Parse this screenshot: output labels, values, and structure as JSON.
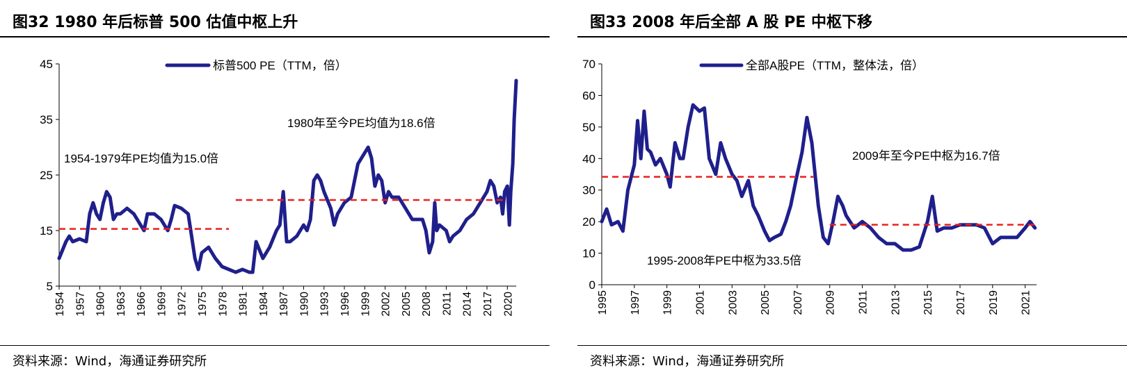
{
  "panels": [
    {
      "figure_title": "图32 1980 年后标普 500 估值中枢上升",
      "source": "资料来源：Wind，海通证券研究所"
    },
    {
      "figure_title": "图33 2008 年后全部 A 股 PE 中枢下移",
      "source": "资料来源：Wind，海通证券研究所"
    }
  ],
  "chart_data": [
    {
      "type": "line",
      "title": "",
      "xlabel": "",
      "ylabel": "",
      "x_ticks": [
        "1954",
        "1957",
        "1960",
        "1963",
        "1966",
        "1969",
        "1972",
        "1975",
        "1978",
        "1981",
        "1984",
        "1987",
        "1990",
        "1993",
        "1996",
        "1999",
        "2002",
        "2005",
        "2008",
        "2011",
        "2014",
        "2017",
        "2020"
      ],
      "y_ticks": [
        5,
        15,
        25,
        35,
        45
      ],
      "xlim": [
        1954,
        2021.3
      ],
      "ylim": [
        5,
        45
      ],
      "grid": false,
      "legend": "top-center",
      "series": [
        {
          "name": "标普500 PE（TTM，倍）",
          "color": "#1f1f8c",
          "x": [
            1954,
            1955,
            1955.5,
            1956,
            1957,
            1958,
            1958.5,
            1959,
            1959.5,
            1960,
            1960.5,
            1961,
            1961.5,
            1962,
            1962.5,
            1963,
            1964,
            1965,
            1966,
            1966.5,
            1967,
            1968,
            1969,
            1970,
            1970.5,
            1971,
            1972,
            1973,
            1973.5,
            1974,
            1974.5,
            1975,
            1976,
            1977,
            1978,
            1979,
            1980,
            1981,
            1982,
            1982.5,
            1983,
            1984,
            1984.5,
            1985,
            1986,
            1986.5,
            1987,
            1987.5,
            1988,
            1989,
            1990,
            1990.5,
            1991,
            1991.5,
            1992,
            1992.5,
            1993,
            1994,
            1994.5,
            1995,
            1996,
            1997,
            1998,
            1999,
            1999.5,
            2000,
            2000.5,
            2001,
            2001.5,
            2002,
            2002.5,
            2003,
            2004,
            2005,
            2006,
            2007,
            2007.5,
            2008,
            2008.5,
            2009,
            2009.3,
            2009.6,
            2010,
            2011,
            2011.5,
            2012,
            2013,
            2014,
            2015,
            2016,
            2017,
            2017.5,
            2018,
            2018.5,
            2019,
            2019.3,
            2019.6,
            2020,
            2020.3,
            2020.5,
            2020.8,
            2021,
            2021.3
          ],
          "y": [
            10,
            13,
            14,
            13,
            13.5,
            13,
            18,
            20,
            18,
            17,
            20,
            22,
            21,
            17,
            18,
            18,
            19,
            18,
            16,
            15,
            18,
            18,
            17,
            15,
            17,
            19.5,
            19,
            18,
            14,
            10,
            8,
            11,
            12,
            10,
            8.5,
            8,
            7.5,
            8,
            7.5,
            7.5,
            13,
            10,
            11,
            12,
            15,
            16,
            22,
            13,
            13,
            14,
            16,
            15,
            17,
            24,
            25,
            24,
            22,
            19,
            16,
            18,
            20,
            21,
            27,
            29,
            30,
            28,
            23,
            25,
            24,
            20,
            22,
            21,
            21,
            19,
            17,
            17,
            17,
            15,
            11,
            13,
            20,
            15,
            16,
            15,
            13,
            14,
            15,
            17,
            18,
            20,
            22,
            24,
            23,
            20,
            21,
            18,
            22,
            23,
            16,
            22,
            27,
            35,
            42
          ]
        }
      ],
      "reference_lines": [
        {
          "label": "1954-1979年PE均值为15.0倍",
          "value": 15.0,
          "x_range": [
            1954,
            1979
          ],
          "y_drawn": 15.3
        },
        {
          "label": "1980年至今PE均值为18.6倍",
          "value": 18.6,
          "x_range": [
            1980,
            2020
          ],
          "y_drawn": 20.5
        }
      ]
    },
    {
      "type": "line",
      "title": "",
      "xlabel": "",
      "ylabel": "",
      "x_ticks": [
        "1995",
        "1997",
        "1999",
        "2001",
        "2003",
        "2005",
        "2007",
        "2009",
        "2011",
        "2013",
        "2015",
        "2017",
        "2019",
        "2021"
      ],
      "y_ticks": [
        0,
        10,
        20,
        30,
        40,
        50,
        60,
        70
      ],
      "xlim": [
        1995,
        2021.7
      ],
      "ylim": [
        0,
        70
      ],
      "grid": false,
      "legend": "top-center",
      "series": [
        {
          "name": "全部A股PE（TTM，整体法，倍）",
          "color": "#1f1f8c",
          "x": [
            1995,
            1995.3,
            1995.6,
            1996,
            1996.3,
            1996.6,
            1997,
            1997.2,
            1997.4,
            1997.6,
            1997.8,
            1998,
            1998.3,
            1998.6,
            1999,
            1999.2,
            1999.5,
            1999.8,
            2000,
            2000.3,
            2000.6,
            2001,
            2001.3,
            2001.6,
            2002,
            2002.3,
            2002.6,
            2003,
            2003.3,
            2003.6,
            2004,
            2004.3,
            2004.6,
            2005,
            2005.3,
            2005.6,
            2006,
            2006.3,
            2006.6,
            2007,
            2007.3,
            2007.6,
            2007.9,
            2008,
            2008.3,
            2008.6,
            2008.9,
            2009.2,
            2009.5,
            2009.8,
            2010,
            2010.5,
            2011,
            2011.5,
            2012,
            2012.5,
            2013,
            2013.5,
            2014,
            2014.5,
            2015,
            2015.3,
            2015.6,
            2016,
            2016.5,
            2017,
            2017.5,
            2018,
            2018.5,
            2019,
            2019.5,
            2020,
            2020.5,
            2021,
            2021.3,
            2021.6
          ],
          "y": [
            20,
            24,
            19,
            20,
            17,
            30,
            38,
            52,
            40,
            55,
            43,
            42,
            38,
            40,
            35,
            31,
            45,
            40,
            40,
            50,
            57,
            55,
            56,
            40,
            35,
            45,
            40,
            35,
            33,
            28,
            33,
            25,
            22,
            17,
            14,
            15,
            16,
            20,
            25,
            35,
            42,
            53,
            45,
            40,
            25,
            15,
            13,
            20,
            28,
            25,
            22,
            18,
            20,
            18,
            15,
            13,
            13,
            11,
            11,
            12,
            20,
            28,
            17,
            18,
            18,
            19,
            19,
            19,
            18,
            13,
            15,
            15,
            15,
            18,
            20,
            18
          ]
        }
      ],
      "reference_lines": [
        {
          "label": "1995-2008年PE中枢为33.5倍",
          "value": 33.5,
          "x_range": [
            1995,
            2008
          ],
          "y_drawn": 34.2
        },
        {
          "label": "2009年至今PE中枢为16.7倍",
          "value": 16.7,
          "x_range": [
            2009,
            2021.6
          ],
          "y_drawn": 19
        }
      ]
    }
  ]
}
